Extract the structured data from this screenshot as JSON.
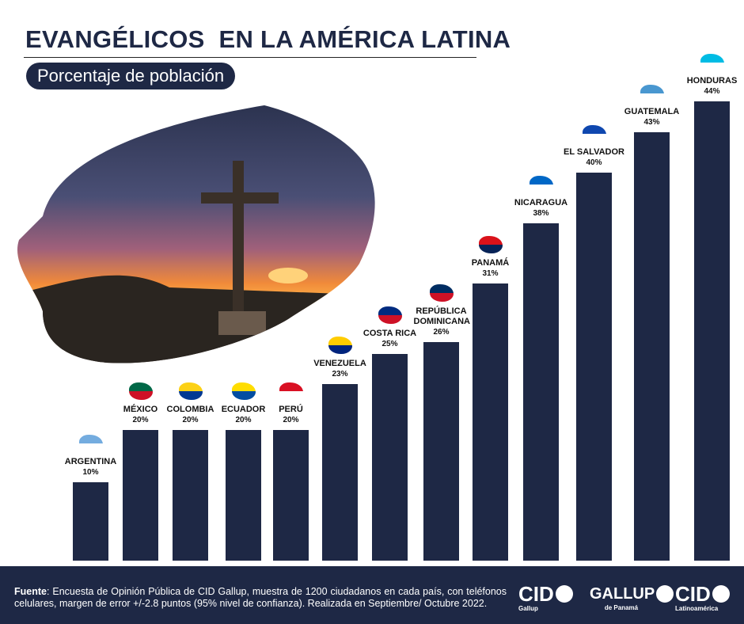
{
  "header": {
    "title": "EVANGÉLICOS  EN LA AMÉRICA LATINA",
    "subtitle": "Porcentaje de población"
  },
  "chart_data": {
    "type": "bar",
    "title": "EVANGÉLICOS  EN LA AMÉRICA LATINA",
    "subtitle": "Porcentaje de población",
    "categories": [
      "ARGENTINA",
      "MÉXICO",
      "COLOMBIA",
      "ECUADOR",
      "PERÚ",
      "VENEZUELA",
      "COSTA RICA",
      "REPÚBLICA DOMINICANA",
      "PANAMÁ",
      "NICARAGUA",
      "EL SALVADOR",
      "GUATEMALA",
      "HONDURAS"
    ],
    "values": [
      10,
      20,
      20,
      20,
      20,
      23,
      25,
      26,
      31,
      38,
      40,
      43,
      44
    ],
    "value_labels": [
      "10%",
      "20%",
      "20%",
      "20%",
      "20%",
      "23%",
      "25%",
      "26%",
      "31%",
      "38%",
      "40%",
      "43%",
      "44%"
    ],
    "bar_color": "#1e2845",
    "grid": false,
    "legend": "none",
    "xlabel": "",
    "ylabel": ""
  },
  "footer": {
    "source_label": "Fuente",
    "source_text": ": Encuesta de Opinión Pública de CID Gallup, muestra de 1200 ciudadanos en cada país, con teléfonos celulares, margen de error +/-2.8 puntos (95% nivel de confianza).  Realizada en Septiembre/ Octubre 2022.",
    "logos": [
      {
        "name": "CID",
        "sub": "Gallup"
      },
      {
        "name": "GALLUP",
        "sub": "de Panamá"
      },
      {
        "name": "CID",
        "sub": "Latinoamérica"
      }
    ]
  }
}
